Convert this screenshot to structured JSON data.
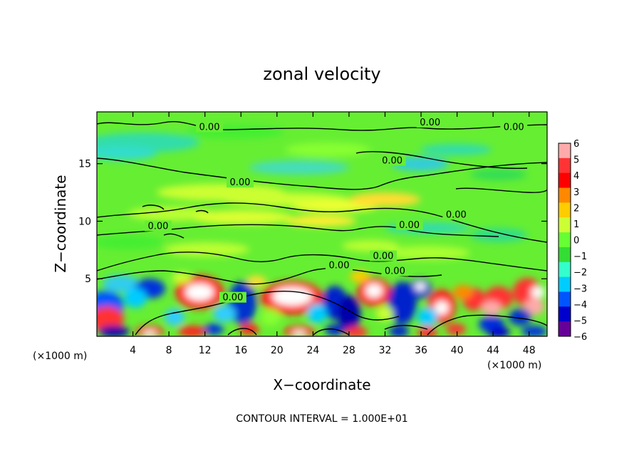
{
  "chart_data": {
    "type": "heatmap",
    "title": "zonal velocity",
    "xlabel": "X−coordinate",
    "ylabel": "Z−coordinate",
    "x_unit_left": "(×1000 m)",
    "x_unit_right": "(×1000 m)",
    "xlim": [
      0,
      50
    ],
    "ylim": [
      0,
      19.5
    ],
    "x_ticks": [
      4,
      8,
      12,
      16,
      20,
      24,
      28,
      32,
      36,
      40,
      44,
      48
    ],
    "x_tick_labels": [
      "4",
      "8",
      "12",
      "16",
      "20",
      "24",
      "28",
      "32",
      "36",
      "40",
      "44",
      "48"
    ],
    "y_ticks": [
      5,
      10,
      15
    ],
    "y_tick_labels": [
      "5",
      "10",
      "15"
    ],
    "colorbar": {
      "min": -6,
      "max": 6,
      "ticks": [
        6,
        5,
        4,
        3,
        2,
        1,
        0,
        -1,
        -2,
        -3,
        -4,
        -5,
        -6
      ],
      "tick_labels": [
        "6",
        "5",
        "4",
        "3",
        "2",
        "1",
        "0",
        "−1",
        "−2",
        "−3",
        "−4",
        "−5",
        "−6"
      ],
      "colors": [
        "#ffaaaa",
        "#ff3333",
        "#ff0000",
        "#ff8800",
        "#ffcc00",
        "#ccff33",
        "#66ff33",
        "#33dd33",
        "#33ffcc",
        "#00ccff",
        "#0055ff",
        "#0000cc",
        "#660099"
      ]
    },
    "contour_label": "0.00",
    "contour_label_positions": [
      [
        12.5,
        18.1
      ],
      [
        37.0,
        18.5
      ],
      [
        46.3,
        18.1
      ],
      [
        32.8,
        15.2
      ],
      [
        15.9,
        13.3
      ],
      [
        39.9,
        10.5
      ],
      [
        34.7,
        9.6
      ],
      [
        6.8,
        9.5
      ],
      [
        31.8,
        6.9
      ],
      [
        26.9,
        6.1
      ],
      [
        33.1,
        5.6
      ],
      [
        15.1,
        3.3
      ]
    ],
    "footer": "CONTOUR INTERVAL = 1.000E+01"
  }
}
